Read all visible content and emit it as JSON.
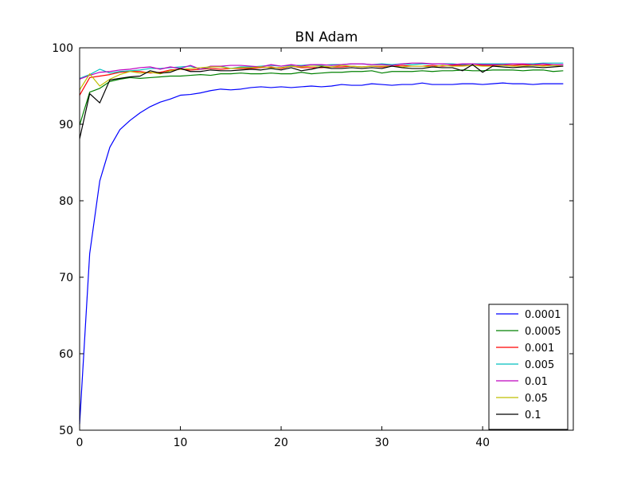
{
  "chart_data": {
    "type": "line",
    "title": "BN Adam",
    "xlabel": "",
    "ylabel": "",
    "xlim": [
      0,
      49
    ],
    "ylim": [
      50,
      100
    ],
    "xticks": [
      0,
      10,
      20,
      30,
      40
    ],
    "yticks": [
      50,
      60,
      70,
      80,
      90,
      100
    ],
    "grid": false,
    "legend_position": "lower-right",
    "series": [
      {
        "name": "0.0001",
        "color": "#0000ff",
        "values": [
          50.8,
          73.1,
          82.6,
          87.0,
          89.3,
          90.5,
          91.5,
          92.3,
          92.9,
          93.3,
          93.8,
          93.9,
          94.1,
          94.4,
          94.6,
          94.5,
          94.6,
          94.8,
          94.9,
          94.8,
          94.9,
          94.8,
          94.9,
          95.0,
          94.9,
          95.0,
          95.2,
          95.1,
          95.1,
          95.3,
          95.2,
          95.1,
          95.2,
          95.2,
          95.4,
          95.2,
          95.2,
          95.2,
          95.3,
          95.3,
          95.2,
          95.3,
          95.4,
          95.3,
          95.3,
          95.2,
          95.3,
          95.3,
          95.3
        ]
      },
      {
        "name": "0.0005",
        "color": "#008000",
        "values": [
          89.9,
          94.2,
          94.7,
          95.6,
          95.9,
          96.1,
          96.0,
          96.1,
          96.2,
          96.3,
          96.3,
          96.4,
          96.5,
          96.4,
          96.6,
          96.6,
          96.7,
          96.6,
          96.6,
          96.7,
          96.6,
          96.6,
          96.8,
          96.6,
          96.7,
          96.8,
          96.8,
          96.9,
          96.9,
          97.0,
          96.7,
          96.9,
          96.9,
          96.9,
          97.0,
          96.9,
          97.0,
          97.0,
          97.1,
          97.0,
          97.0,
          97.1,
          97.1,
          97.1,
          97.0,
          97.1,
          97.1,
          96.9,
          97.0
        ]
      },
      {
        "name": "0.001",
        "color": "#ff0000",
        "values": [
          93.8,
          96.1,
          96.3,
          96.5,
          96.8,
          96.9,
          96.9,
          96.7,
          96.8,
          97.1,
          97.2,
          97.1,
          97.2,
          97.3,
          97.2,
          97.3,
          97.3,
          97.3,
          97.4,
          97.5,
          97.3,
          97.6,
          97.4,
          97.4,
          97.4,
          97.5,
          97.5,
          97.6,
          97.5,
          97.6,
          97.5,
          97.6,
          97.7,
          97.6,
          97.6,
          97.7,
          97.6,
          97.7,
          97.7,
          97.7,
          97.7,
          97.7,
          97.7,
          97.7,
          97.8,
          97.7,
          97.7,
          97.8,
          97.8
        ]
      },
      {
        "name": "0.005",
        "color": "#00bfbf",
        "values": [
          96.0,
          96.5,
          97.2,
          96.7,
          96.9,
          97.0,
          97.1,
          97.3,
          97.3,
          97.4,
          97.5,
          97.6,
          97.2,
          97.5,
          97.6,
          97.3,
          97.5,
          97.5,
          97.6,
          97.7,
          97.6,
          97.7,
          97.7,
          97.8,
          97.7,
          97.8,
          97.8,
          97.9,
          97.9,
          97.8,
          97.9,
          97.8,
          97.9,
          97.8,
          97.9,
          97.9,
          97.9,
          97.9,
          97.8,
          97.9,
          97.9,
          97.9,
          97.9,
          97.9,
          97.9,
          97.9,
          98.0,
          98.0,
          98.0
        ]
      },
      {
        "name": "0.01",
        "color": "#bf00bf",
        "values": [
          95.9,
          96.4,
          96.8,
          96.9,
          97.1,
          97.2,
          97.4,
          97.5,
          97.2,
          97.5,
          97.3,
          97.7,
          97.2,
          97.6,
          97.6,
          97.7,
          97.7,
          97.6,
          97.5,
          97.8,
          97.6,
          97.8,
          97.6,
          97.8,
          97.8,
          97.7,
          97.8,
          97.9,
          97.9,
          97.8,
          97.8,
          97.7,
          97.9,
          98.0,
          98.0,
          97.9,
          97.9,
          97.8,
          97.9,
          97.9,
          97.8,
          97.8,
          97.8,
          97.9,
          97.9,
          97.8,
          97.9,
          97.8,
          97.8
        ]
      },
      {
        "name": "0.05",
        "color": "#bfbf00",
        "values": [
          94.5,
          96.6,
          95.0,
          95.9,
          96.5,
          96.9,
          96.7,
          96.8,
          96.6,
          97.0,
          97.2,
          97.3,
          97.4,
          97.5,
          97.5,
          97.3,
          97.4,
          97.4,
          97.5,
          97.4,
          97.4,
          97.6,
          97.5,
          97.6,
          97.6,
          97.5,
          97.7,
          97.6,
          97.5,
          97.6,
          97.6,
          97.6,
          97.5,
          97.6,
          97.6,
          97.5,
          97.7,
          97.6,
          97.6,
          97.7,
          97.6,
          97.6,
          97.7,
          97.6,
          97.6,
          97.7,
          97.6,
          97.7,
          97.6
        ]
      },
      {
        "name": "0.1",
        "color": "#000000",
        "values": [
          88.1,
          94.0,
          92.8,
          95.8,
          96.0,
          96.2,
          96.3,
          97.0,
          96.7,
          96.8,
          97.3,
          96.9,
          96.9,
          97.1,
          97.0,
          97.0,
          97.1,
          97.2,
          97.1,
          97.3,
          97.1,
          97.4,
          97.0,
          97.2,
          97.5,
          97.3,
          97.3,
          97.4,
          97.3,
          97.4,
          97.3,
          97.6,
          97.4,
          97.3,
          97.3,
          97.5,
          97.4,
          97.4,
          97.0,
          97.8,
          96.8,
          97.6,
          97.5,
          97.4,
          97.5,
          97.5,
          97.4,
          97.5,
          97.6
        ]
      }
    ]
  }
}
